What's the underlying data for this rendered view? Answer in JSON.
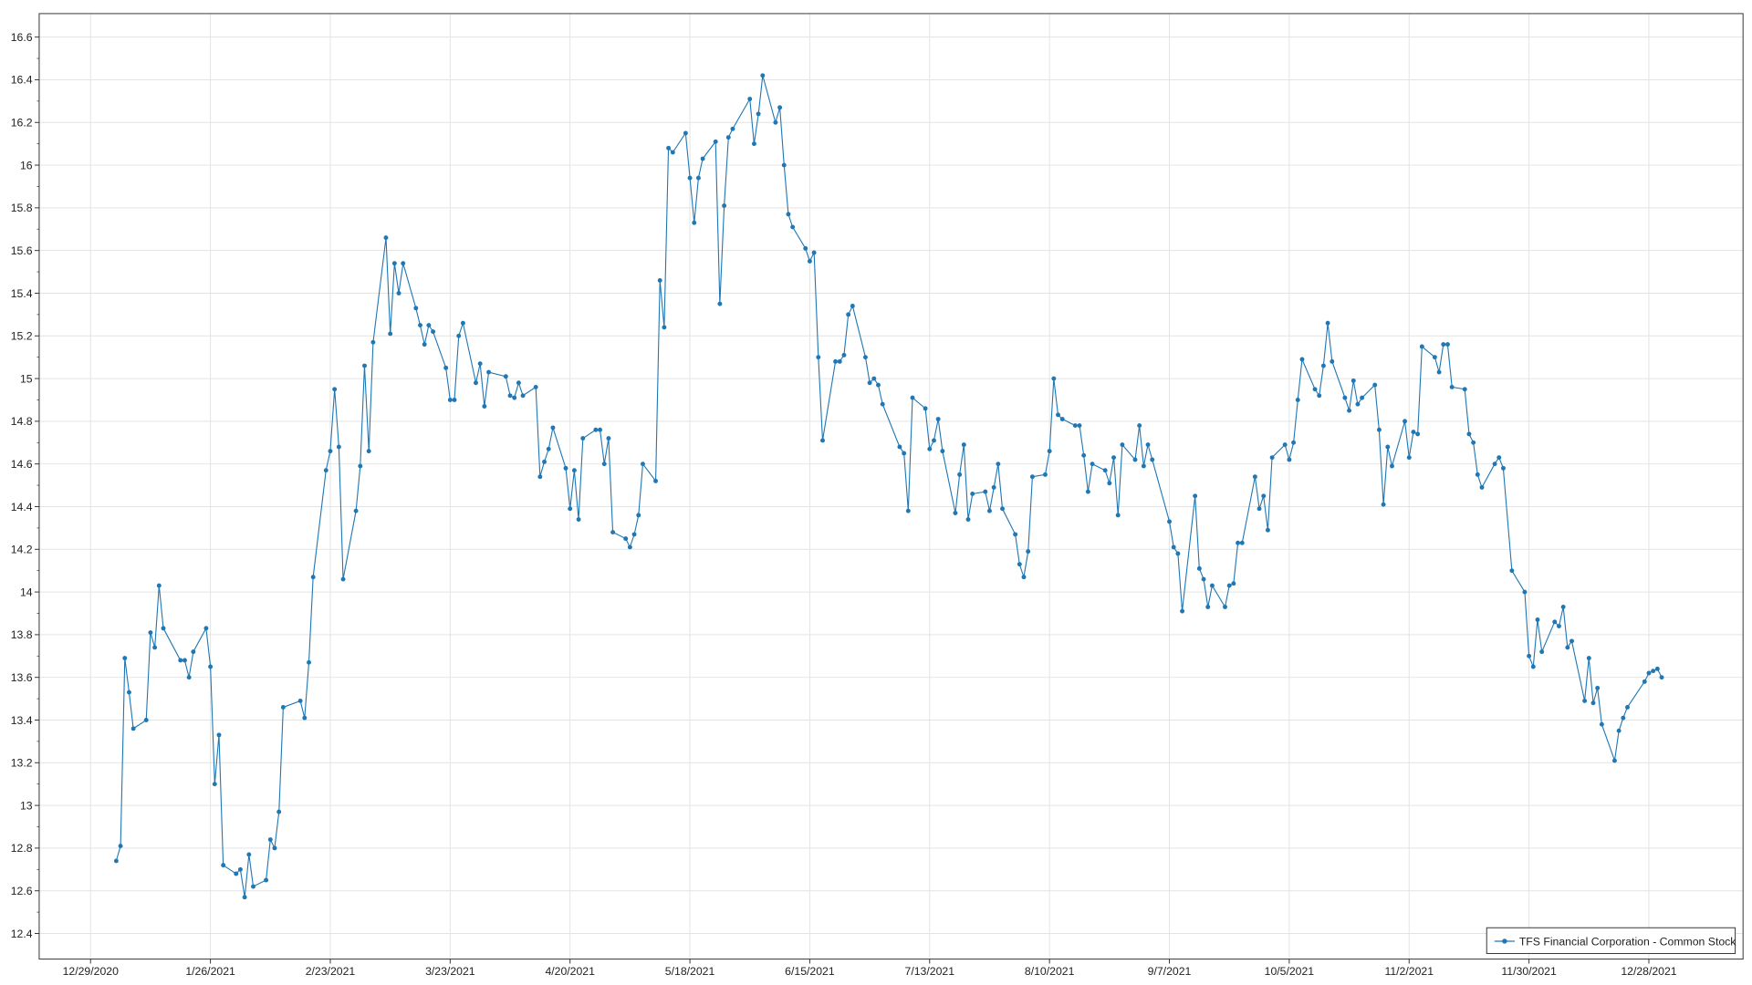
{
  "chart_data": {
    "type": "line",
    "title": "",
    "xlabel": "",
    "ylabel": "",
    "grid": true,
    "legend_placement": "bottom-right",
    "ylim": [
      12.28,
      16.71
    ],
    "xlim": [
      "12/17/2020",
      "1/19/2022"
    ],
    "y_ticks": [
      "12.4",
      "12.6",
      "12.8",
      "13",
      "13.2",
      "13.4",
      "13.6",
      "13.8",
      "14",
      "14.2",
      "14.4",
      "14.6",
      "14.8",
      "15",
      "15.2",
      "15.4",
      "15.6",
      "15.8",
      "16",
      "16.2",
      "16.4",
      "16.6"
    ],
    "x_ticks": [
      "12/29/2020",
      "1/26/2021",
      "2/23/2021",
      "3/23/2021",
      "4/20/2021",
      "5/18/2021",
      "6/15/2021",
      "7/13/2021",
      "8/10/2021",
      "9/7/2021",
      "10/5/2021",
      "11/2/2021",
      "11/30/2021",
      "12/28/2021"
    ],
    "colors": {
      "series": "#1f77b4",
      "grid": "#e3e3e3",
      "axis": "#333333"
    },
    "series": [
      {
        "name": "TFS Financial Corporation - Common Stock",
        "marker": "circle",
        "x": [
          "1/4/2021",
          "1/5/2021",
          "1/6/2021",
          "1/7/2021",
          "1/8/2021",
          "1/11/2021",
          "1/12/2021",
          "1/13/2021",
          "1/14/2021",
          "1/15/2021",
          "1/19/2021",
          "1/20/2021",
          "1/21/2021",
          "1/22/2021",
          "1/25/2021",
          "1/26/2021",
          "1/27/2021",
          "1/28/2021",
          "1/29/2021",
          "2/1/2021",
          "2/2/2021",
          "2/3/2021",
          "2/4/2021",
          "2/5/2021",
          "2/8/2021",
          "2/9/2021",
          "2/10/2021",
          "2/11/2021",
          "2/12/2021",
          "2/16/2021",
          "2/17/2021",
          "2/18/2021",
          "2/19/2021",
          "2/22/2021",
          "2/23/2021",
          "2/24/2021",
          "2/25/2021",
          "2/26/2021",
          "3/1/2021",
          "3/2/2021",
          "3/3/2021",
          "3/4/2021",
          "3/5/2021",
          "3/8/2021",
          "3/9/2021",
          "3/10/2021",
          "3/11/2021",
          "3/12/2021",
          "3/15/2021",
          "3/16/2021",
          "3/17/2021",
          "3/18/2021",
          "3/19/2021",
          "3/22/2021",
          "3/23/2021",
          "3/24/2021",
          "3/25/2021",
          "3/26/2021",
          "3/29/2021",
          "3/30/2021",
          "3/31/2021",
          "4/1/2021",
          "4/5/2021",
          "4/6/2021",
          "4/7/2021",
          "4/8/2021",
          "4/9/2021",
          "4/12/2021",
          "4/13/2021",
          "4/14/2021",
          "4/15/2021",
          "4/16/2021",
          "4/19/2021",
          "4/20/2021",
          "4/21/2021",
          "4/22/2021",
          "4/23/2021",
          "4/26/2021",
          "4/27/2021",
          "4/28/2021",
          "4/29/2021",
          "4/30/2021",
          "5/3/2021",
          "5/4/2021",
          "5/5/2021",
          "5/6/2021",
          "5/7/2021",
          "5/10/2021",
          "5/11/2021",
          "5/12/2021",
          "5/13/2021",
          "5/14/2021",
          "5/17/2021",
          "5/18/2021",
          "5/19/2021",
          "5/20/2021",
          "5/21/2021",
          "5/24/2021",
          "5/25/2021",
          "5/26/2021",
          "5/27/2021",
          "5/28/2021",
          "6/1/2021",
          "6/2/2021",
          "6/3/2021",
          "6/4/2021",
          "6/7/2021",
          "6/8/2021",
          "6/9/2021",
          "6/10/2021",
          "6/11/2021",
          "6/14/2021",
          "6/15/2021",
          "6/16/2021",
          "6/17/2021",
          "6/18/2021",
          "6/21/2021",
          "6/22/2021",
          "6/23/2021",
          "6/24/2021",
          "6/25/2021",
          "6/28/2021",
          "6/29/2021",
          "6/30/2021",
          "7/1/2021",
          "7/2/2021",
          "7/6/2021",
          "7/7/2021",
          "7/8/2021",
          "7/9/2021",
          "7/12/2021",
          "7/13/2021",
          "7/14/2021",
          "7/15/2021",
          "7/16/2021",
          "7/19/2021",
          "7/20/2021",
          "7/21/2021",
          "7/22/2021",
          "7/23/2021",
          "7/26/2021",
          "7/27/2021",
          "7/28/2021",
          "7/29/2021",
          "7/30/2021",
          "8/2/2021",
          "8/3/2021",
          "8/4/2021",
          "8/5/2021",
          "8/6/2021",
          "8/9/2021",
          "8/10/2021",
          "8/11/2021",
          "8/12/2021",
          "8/13/2021",
          "8/16/2021",
          "8/17/2021",
          "8/18/2021",
          "8/19/2021",
          "8/20/2021",
          "8/23/2021",
          "8/24/2021",
          "8/25/2021",
          "8/26/2021",
          "8/27/2021",
          "8/30/2021",
          "8/31/2021",
          "9/1/2021",
          "9/2/2021",
          "9/3/2021",
          "9/7/2021",
          "9/8/2021",
          "9/9/2021",
          "9/10/2021",
          "9/13/2021",
          "9/14/2021",
          "9/15/2021",
          "9/16/2021",
          "9/17/2021",
          "9/20/2021",
          "9/21/2021",
          "9/22/2021",
          "9/23/2021",
          "9/24/2021",
          "9/27/2021",
          "9/28/2021",
          "9/29/2021",
          "9/30/2021",
          "10/1/2021",
          "10/4/2021",
          "10/5/2021",
          "10/6/2021",
          "10/7/2021",
          "10/8/2021",
          "10/11/2021",
          "10/12/2021",
          "10/13/2021",
          "10/14/2021",
          "10/15/2021",
          "10/18/2021",
          "10/19/2021",
          "10/20/2021",
          "10/21/2021",
          "10/22/2021",
          "10/25/2021",
          "10/26/2021",
          "10/27/2021",
          "10/28/2021",
          "10/29/2021",
          "11/1/2021",
          "11/2/2021",
          "11/3/2021",
          "11/4/2021",
          "11/5/2021",
          "11/8/2021",
          "11/9/2021",
          "11/10/2021",
          "11/11/2021",
          "11/12/2021",
          "11/15/2021",
          "11/16/2021",
          "11/17/2021",
          "11/18/2021",
          "11/19/2021",
          "11/22/2021",
          "11/23/2021",
          "11/24/2021",
          "11/26/2021",
          "11/29/2021",
          "11/30/2021",
          "12/1/2021",
          "12/2/2021",
          "12/3/2021",
          "12/6/2021",
          "12/7/2021",
          "12/8/2021",
          "12/9/2021",
          "12/10/2021",
          "12/13/2021",
          "12/14/2021",
          "12/15/2021",
          "12/16/2021",
          "12/17/2021",
          "12/20/2021",
          "12/21/2021",
          "12/22/2021",
          "12/23/2021",
          "12/27/2021",
          "12/28/2021",
          "12/29/2021",
          "12/30/2021",
          "12/31/2021"
        ],
        "y": [
          12.74,
          12.81,
          13.69,
          13.53,
          13.36,
          13.4,
          13.81,
          13.74,
          14.03,
          13.83,
          13.68,
          13.68,
          13.6,
          13.72,
          13.83,
          13.65,
          13.1,
          13.33,
          12.72,
          12.68,
          12.7,
          12.57,
          12.77,
          12.62,
          12.65,
          12.84,
          12.8,
          12.97,
          13.46,
          13.49,
          13.41,
          13.67,
          14.07,
          14.57,
          14.66,
          14.95,
          14.68,
          14.06,
          14.38,
          14.59,
          15.06,
          14.66,
          15.17,
          15.66,
          15.21,
          15.54,
          15.4,
          15.54,
          15.33,
          15.25,
          15.16,
          15.25,
          15.22,
          15.05,
          14.9,
          14.9,
          15.2,
          15.26,
          14.98,
          15.07,
          14.87,
          15.03,
          15.01,
          14.92,
          14.91,
          14.98,
          14.92,
          14.96,
          14.54,
          14.61,
          14.67,
          14.77,
          14.58,
          14.39,
          14.57,
          14.34,
          14.72,
          14.76,
          14.76,
          14.6,
          14.72,
          14.28,
          14.25,
          14.21,
          14.27,
          14.36,
          14.6,
          14.52,
          15.46,
          15.24,
          16.08,
          16.06,
          16.15,
          15.94,
          15.73,
          15.94,
          16.03,
          16.11,
          15.35,
          15.81,
          16.13,
          16.17,
          16.31,
          16.1,
          16.24,
          16.42,
          16.2,
          16.27,
          16.0,
          15.77,
          15.71,
          15.61,
          15.55,
          15.59,
          15.1,
          14.71,
          15.08,
          15.08,
          15.11,
          15.3,
          15.34,
          15.1,
          14.98,
          15.0,
          14.97,
          14.88,
          14.68,
          14.65,
          14.38,
          14.91,
          14.86,
          14.67,
          14.71,
          14.81,
          14.66,
          14.37,
          14.55,
          14.69,
          14.34,
          14.46,
          14.47,
          14.38,
          14.49,
          14.6,
          14.39,
          14.27,
          14.13,
          14.07,
          14.19,
          14.54,
          14.55,
          14.66,
          15.0,
          14.83,
          14.81,
          14.78,
          14.78,
          14.64,
          14.47,
          14.6,
          14.57,
          14.51,
          14.63,
          14.36,
          14.69,
          14.62,
          14.78,
          14.59,
          14.69,
          14.62,
          14.33,
          14.21,
          14.18,
          13.91,
          14.45,
          14.11,
          14.06,
          13.93,
          14.03,
          13.93,
          14.03,
          14.04,
          14.23,
          14.23,
          14.54,
          14.39,
          14.45,
          14.29,
          14.63,
          14.69,
          14.62,
          14.7,
          14.9,
          15.09,
          14.95,
          14.92,
          15.06,
          15.26,
          15.08,
          14.91,
          14.85,
          14.99,
          14.88,
          14.91,
          14.97,
          14.76,
          14.41,
          14.68,
          14.59,
          14.8,
          14.63,
          14.75,
          14.74,
          15.15,
          15.1,
          15.03,
          15.16,
          15.16,
          14.96,
          14.95,
          14.74,
          14.7,
          14.55,
          14.49,
          14.6,
          14.63,
          14.58,
          14.1,
          14.0,
          13.7,
          13.65,
          13.87,
          13.72,
          13.86,
          13.84,
          13.93,
          13.74,
          13.77,
          13.49,
          13.69,
          13.48,
          13.55,
          13.38,
          13.21,
          13.35,
          13.41,
          13.46,
          13.58,
          13.62,
          13.63,
          13.64,
          13.6
        ]
      }
    ]
  }
}
